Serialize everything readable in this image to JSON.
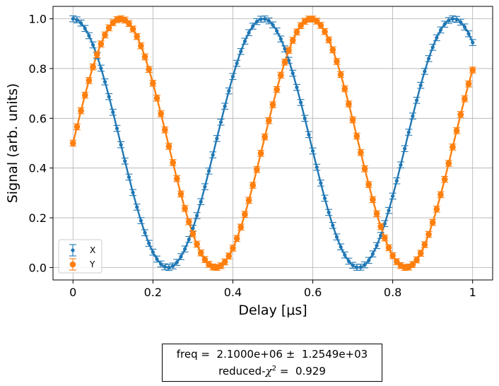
{
  "chart_data": {
    "type": "scatter",
    "xlabel": "Delay [μs]",
    "ylabel": "Signal (arb. units)",
    "xlim": [
      -0.05,
      1.05
    ],
    "ylim": [
      -0.05,
      1.05
    ],
    "xticks": [
      0,
      0.2,
      0.4,
      0.6,
      0.8,
      1
    ],
    "xtick_labels": [
      "0",
      "0.2",
      "0.4",
      "0.6",
      "0.8",
      "1"
    ],
    "yticks": [
      0.0,
      0.2,
      0.4,
      0.6,
      0.8,
      1.0
    ],
    "ytick_labels": [
      "0.0",
      "0.2",
      "0.4",
      "0.6",
      "0.8",
      "1.0"
    ],
    "grid": true,
    "legend_placement": "lower-left",
    "x_start": 0,
    "x_end": 1,
    "n_points": 101,
    "error_bar": 0.012,
    "series": [
      {
        "name": "X",
        "color": "#1f77b4",
        "marker": "dot",
        "model": "0.5 + 0.5*cos(2*pi*freq*t)"
      },
      {
        "name": "Y",
        "color": "#ff7f0e",
        "marker": "circle",
        "model": "0.5 + 0.5*sin(2*pi*freq*t)"
      }
    ],
    "fit": {
      "freq_label": "freq = ",
      "freq_value": "2.1000e+06",
      "pm": "±",
      "freq_err": "1.2549e+03",
      "freq_hz": 2100000,
      "chi_label_prefix": "reduced-",
      "chi_symbol": "χ",
      "chi_sup": "2",
      "chi_eq": " = ",
      "chi_value": "0.929"
    }
  }
}
